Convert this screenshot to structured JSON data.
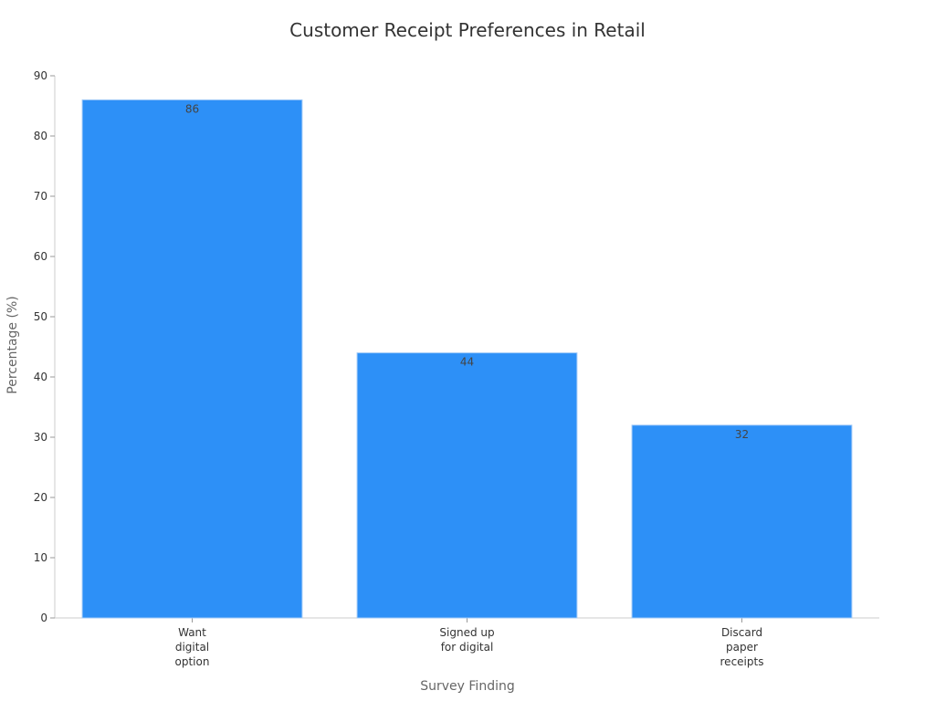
{
  "chart_data": {
    "type": "bar",
    "title": "Customer Receipt Preferences in Retail",
    "xlabel": "Survey Finding",
    "ylabel": "Percentage (%)",
    "categories": [
      [
        "Want",
        "digital",
        "option"
      ],
      [
        "Signed up",
        "for digital"
      ],
      [
        "Discard",
        "paper",
        "receipts"
      ]
    ],
    "values": [
      86,
      44,
      32
    ],
    "ylim": [
      0,
      90
    ],
    "yticks": [
      0,
      10,
      20,
      30,
      40,
      50,
      60,
      70,
      80,
      90
    ],
    "bar_color": "#2d90f7",
    "grid": false,
    "data_labels": true
  }
}
